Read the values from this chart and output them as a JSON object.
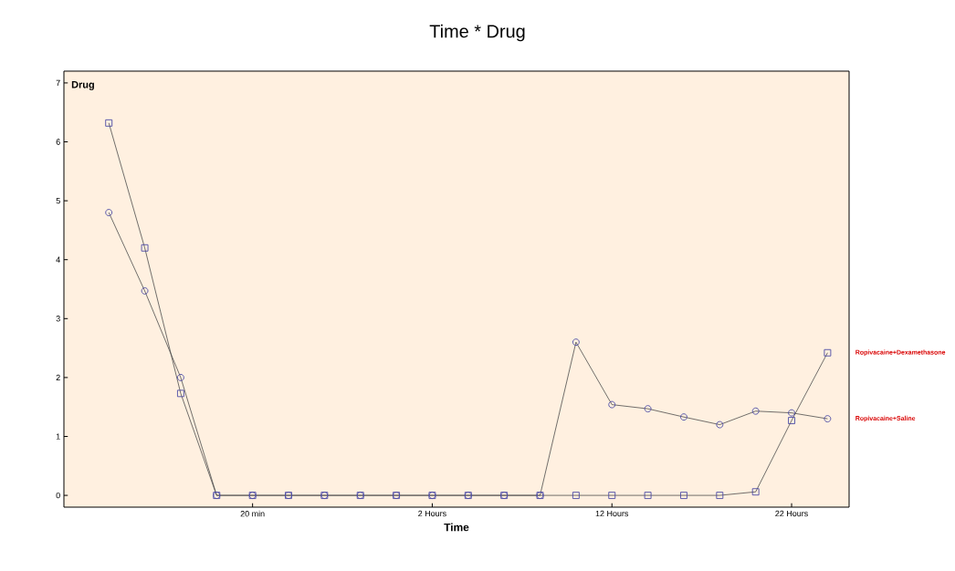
{
  "chart_data": {
    "type": "line",
    "title": "Time * Drug",
    "xlabel": "Time",
    "legend_title": "Drug",
    "categories": [
      null,
      null,
      null,
      null,
      "20 min",
      null,
      null,
      null,
      null,
      "2 Hours",
      null,
      null,
      null,
      null,
      "12 Hours",
      null,
      null,
      null,
      null,
      "22 Hours",
      null
    ],
    "series": [
      {
        "name": "Ropivacaine+Dexamethasone",
        "color": "#4b4ba6",
        "marker": "square",
        "values": [
          6.32,
          4.2,
          1.73,
          0,
          0,
          0,
          0,
          0,
          0,
          0,
          0,
          0,
          0,
          0,
          0,
          0,
          0,
          0,
          0.06,
          1.27,
          2.42
        ]
      },
      {
        "name": "Ropivacaine+Saline",
        "color": "#4b4ba6",
        "marker": "circle",
        "values": [
          4.8,
          3.47,
          2.0,
          0,
          0,
          0,
          0,
          0,
          0,
          0,
          0,
          0,
          0,
          2.6,
          1.54,
          1.47,
          1.33,
          1.2,
          1.43,
          1.4,
          1.3
        ]
      }
    ],
    "ylim": [
      -0.2,
      7.2
    ],
    "yticks": [
      0,
      1,
      2,
      3,
      4,
      5,
      6,
      7
    ],
    "grid": false,
    "legend": "right",
    "line_style": "solid"
  }
}
